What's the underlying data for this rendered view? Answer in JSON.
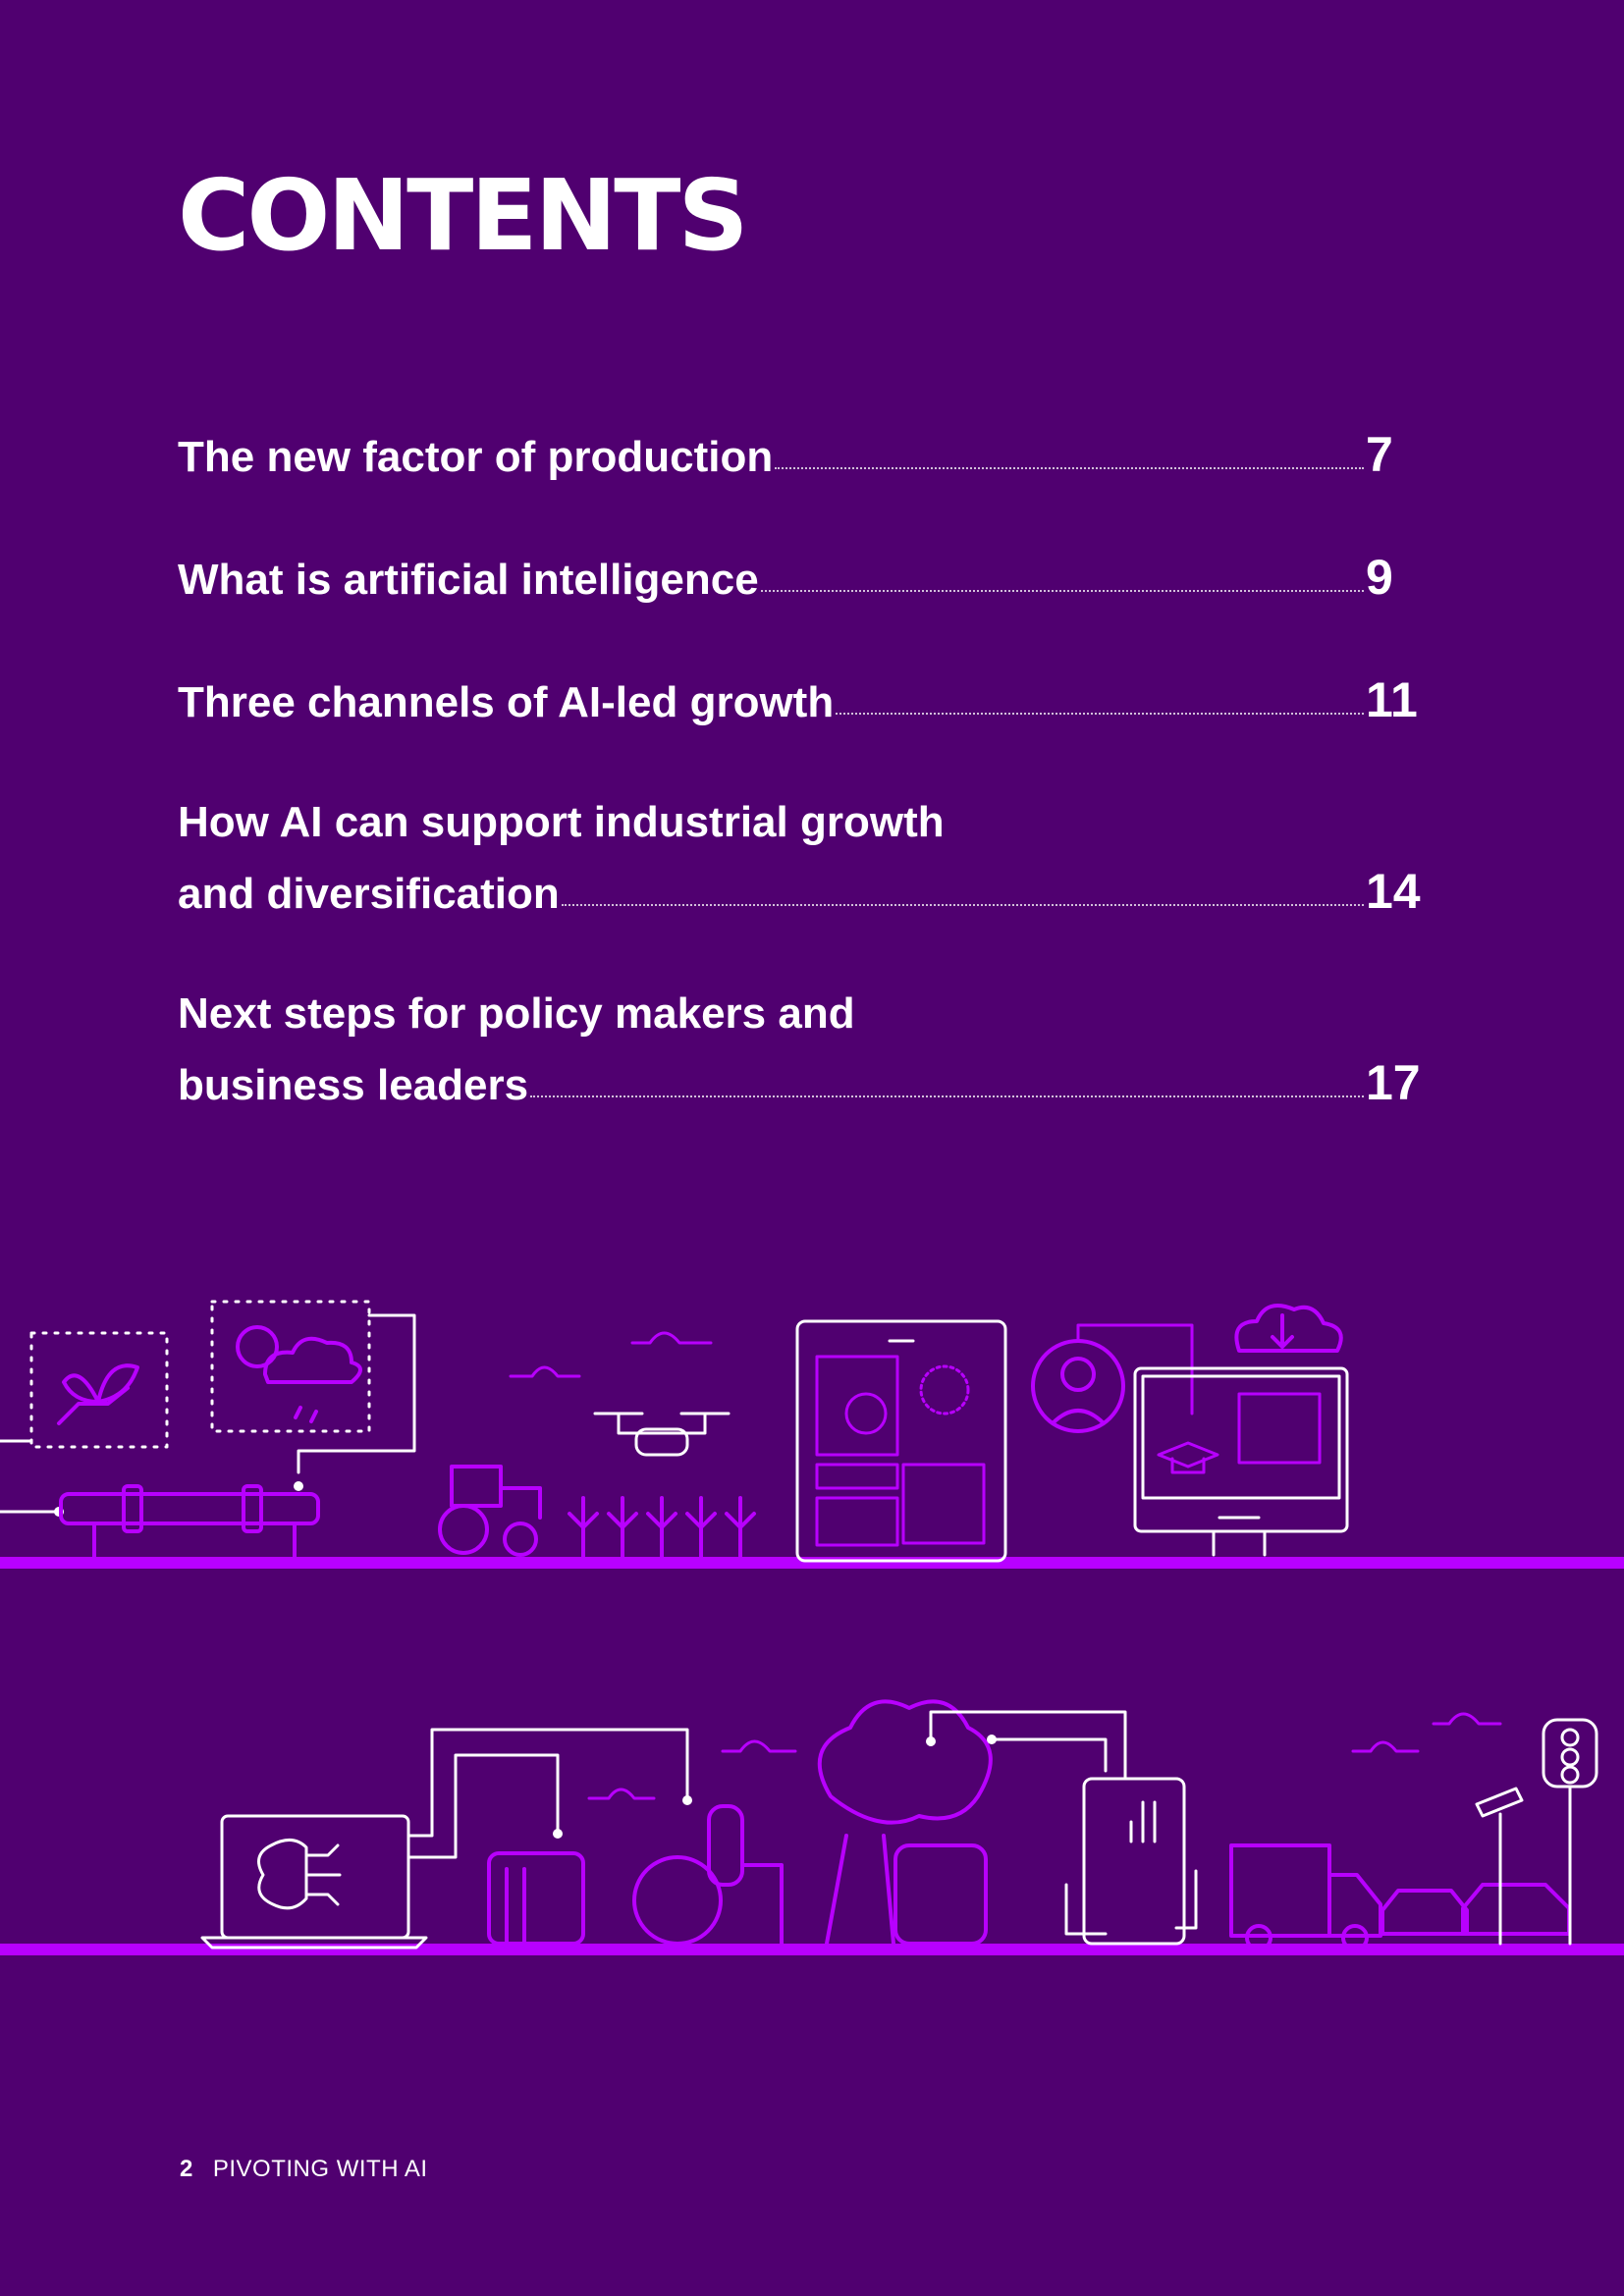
{
  "title": "CONTENTS",
  "toc": [
    {
      "first": "",
      "last": "The new factor of production",
      "page": "7"
    },
    {
      "first": "",
      "last": "What is artificial intelligence",
      "page": "9"
    },
    {
      "first": "",
      "last": "Three channels of AI-led growth",
      "page": "11"
    },
    {
      "first": "How AI can support industrial growth",
      "last": "and diversification",
      "page": "14"
    },
    {
      "first": "Next steps for policy makers and",
      "last": "business leaders",
      "page": "17"
    }
  ],
  "footer": {
    "page_number": "2",
    "label": "PIVOTING WITH AI"
  },
  "colors": {
    "background": "#500070",
    "accent": "#B800FF",
    "text": "#FFFFFF"
  }
}
